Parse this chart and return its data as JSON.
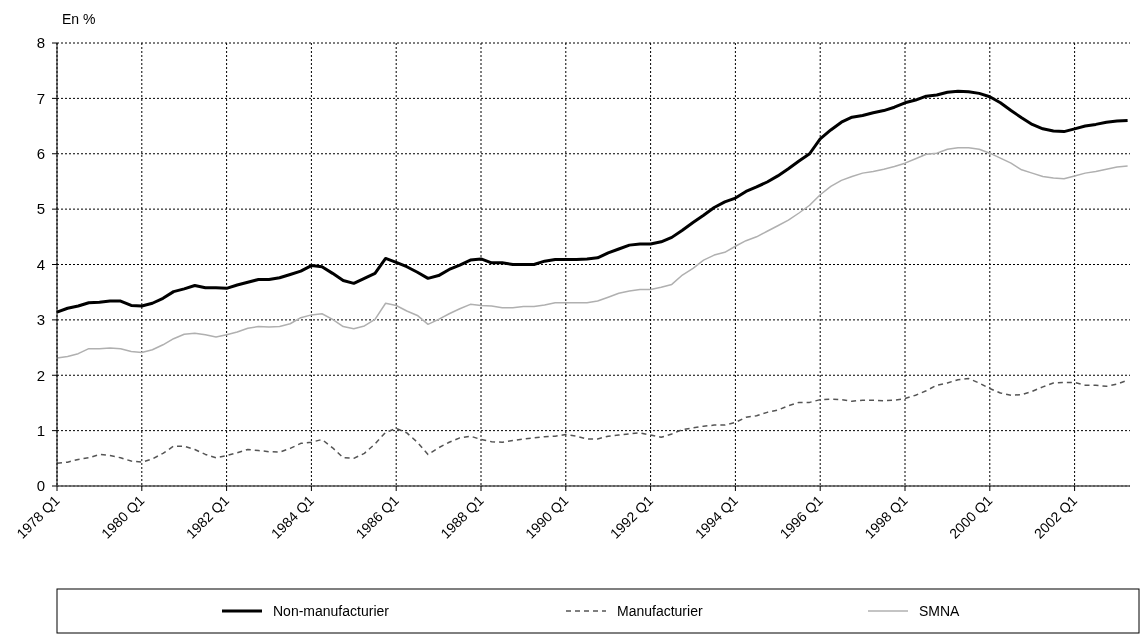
{
  "chart_data": {
    "type": "line",
    "ylabel": "En %",
    "categories": [
      "1978 Q1",
      null,
      null,
      null,
      null,
      null,
      null,
      null,
      "1980 Q1",
      null,
      null,
      null,
      null,
      null,
      null,
      null,
      "1982 Q1",
      null,
      null,
      null,
      null,
      null,
      null,
      null,
      "1984 Q1",
      null,
      null,
      null,
      null,
      null,
      null,
      null,
      "1986 Q1",
      null,
      null,
      null,
      null,
      null,
      null,
      null,
      "1988 Q1",
      null,
      null,
      null,
      null,
      null,
      null,
      null,
      "1990 Q1",
      null,
      null,
      null,
      null,
      null,
      null,
      null,
      "1992 Q1",
      null,
      null,
      null,
      null,
      null,
      null,
      null,
      "1994 Q1",
      null,
      null,
      null,
      null,
      null,
      null,
      null,
      "1996 Q1",
      null,
      null,
      null,
      null,
      null,
      null,
      null,
      "1998 Q1",
      null,
      null,
      null,
      null,
      null,
      null,
      null,
      "2000 Q1",
      null,
      null,
      null,
      null,
      null,
      null,
      null,
      "2002 Q1",
      null,
      null,
      null,
      null,
      null
    ],
    "ylim": [
      0,
      8
    ],
    "yticks": [
      0,
      1,
      2,
      3,
      4,
      5,
      6,
      7,
      8
    ],
    "grid": true,
    "legend": "bottom",
    "marker": "none",
    "series": [
      {
        "name": "Non-manufacturier",
        "color": "#000000",
        "line_style": "solid",
        "values": [
          3.14,
          3.21,
          3.25,
          3.31,
          3.32,
          3.34,
          3.34,
          3.26,
          3.25,
          3.3,
          3.39,
          3.51,
          3.56,
          3.62,
          3.58,
          3.58,
          3.57,
          3.63,
          3.68,
          3.73,
          3.73,
          3.76,
          3.82,
          3.88,
          3.98,
          3.96,
          3.84,
          3.71,
          3.66,
          3.75,
          3.84,
          4.11,
          4.04,
          3.96,
          3.86,
          3.75,
          3.8,
          3.91,
          3.99,
          4.08,
          4.1,
          4.03,
          4.03,
          4.0,
          4.0,
          4.0,
          4.06,
          4.09,
          4.09,
          4.09,
          4.1,
          4.12,
          4.21,
          4.28,
          4.35,
          4.37,
          4.37,
          4.41,
          4.49,
          4.62,
          4.76,
          4.89,
          5.03,
          5.13,
          5.2,
          5.32,
          5.4,
          5.49,
          5.6,
          5.73,
          5.87,
          6.0,
          6.27,
          6.43,
          6.57,
          6.66,
          6.69,
          6.74,
          6.78,
          6.84,
          6.92,
          6.97,
          7.04,
          7.06,
          7.11,
          7.13,
          7.12,
          7.09,
          7.03,
          6.92,
          6.78,
          6.65,
          6.53,
          6.45,
          6.41,
          6.4,
          6.45,
          6.5,
          6.53,
          6.57,
          6.59,
          6.6
        ]
      },
      {
        "name": "Manufacturier",
        "color": "#555555",
        "line_style": "dashed",
        "values": [
          0.41,
          0.43,
          0.48,
          0.51,
          0.57,
          0.55,
          0.51,
          0.45,
          0.43,
          0.49,
          0.59,
          0.72,
          0.72,
          0.66,
          0.57,
          0.51,
          0.55,
          0.6,
          0.66,
          0.64,
          0.62,
          0.61,
          0.68,
          0.77,
          0.79,
          0.84,
          0.69,
          0.51,
          0.5,
          0.59,
          0.76,
          0.97,
          1.04,
          0.96,
          0.79,
          0.57,
          0.69,
          0.79,
          0.87,
          0.9,
          0.84,
          0.8,
          0.79,
          0.82,
          0.85,
          0.87,
          0.89,
          0.9,
          0.93,
          0.9,
          0.85,
          0.85,
          0.9,
          0.92,
          0.94,
          0.96,
          0.92,
          0.88,
          0.94,
          1.02,
          1.05,
          1.08,
          1.1,
          1.1,
          1.15,
          1.24,
          1.27,
          1.33,
          1.37,
          1.45,
          1.51,
          1.51,
          1.56,
          1.57,
          1.56,
          1.53,
          1.55,
          1.55,
          1.54,
          1.55,
          1.58,
          1.64,
          1.72,
          1.82,
          1.86,
          1.92,
          1.94,
          1.86,
          1.76,
          1.68,
          1.64,
          1.65,
          1.71,
          1.79,
          1.86,
          1.87,
          1.87,
          1.82,
          1.82,
          1.8,
          1.84,
          1.91
        ]
      },
      {
        "name": "SMNA",
        "color": "#b0b0b0",
        "line_style": "solid",
        "values": [
          2.31,
          2.34,
          2.39,
          2.48,
          2.48,
          2.49,
          2.48,
          2.43,
          2.41,
          2.46,
          2.55,
          2.66,
          2.74,
          2.76,
          2.73,
          2.69,
          2.73,
          2.78,
          2.85,
          2.88,
          2.87,
          2.88,
          2.93,
          3.04,
          3.09,
          3.11,
          3.01,
          2.88,
          2.84,
          2.89,
          3.01,
          3.3,
          3.26,
          3.16,
          3.08,
          2.92,
          3.01,
          3.11,
          3.2,
          3.28,
          3.26,
          3.25,
          3.22,
          3.22,
          3.24,
          3.24,
          3.27,
          3.31,
          3.31,
          3.31,
          3.31,
          3.34,
          3.41,
          3.48,
          3.52,
          3.55,
          3.55,
          3.59,
          3.64,
          3.81,
          3.93,
          4.08,
          4.17,
          4.22,
          4.33,
          4.43,
          4.5,
          4.6,
          4.7,
          4.8,
          4.93,
          5.07,
          5.26,
          5.41,
          5.52,
          5.59,
          5.65,
          5.68,
          5.72,
          5.77,
          5.83,
          5.91,
          5.99,
          6.01,
          6.08,
          6.11,
          6.11,
          6.08,
          6.01,
          5.92,
          5.83,
          5.71,
          5.65,
          5.59,
          5.56,
          5.55,
          5.6,
          5.65,
          5.68,
          5.72,
          5.76,
          5.78
        ]
      }
    ]
  }
}
